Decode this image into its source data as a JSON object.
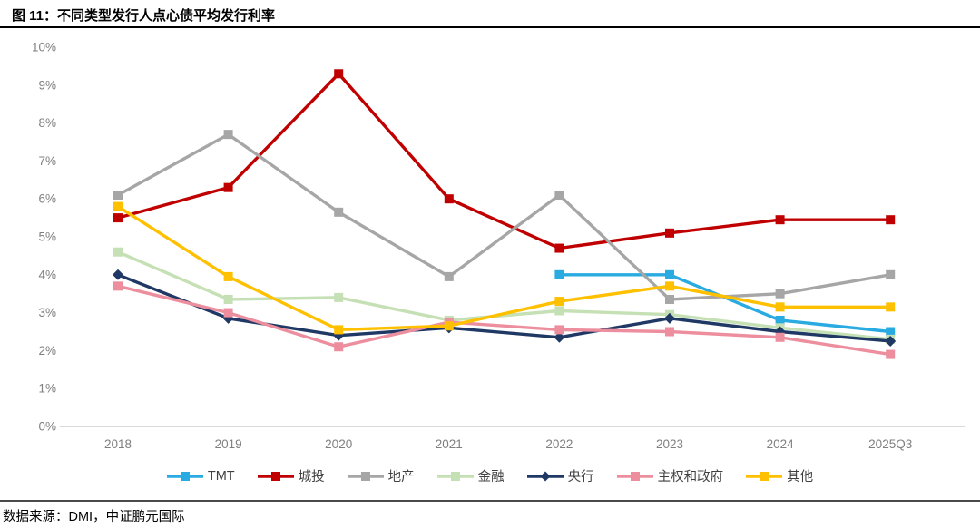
{
  "header": {
    "title": "图 11：不同类型发行人点心债平均发行利率"
  },
  "footer": {
    "source": "数据来源：DMI，中证鹏元国际"
  },
  "chart_data": {
    "type": "line",
    "title": "不同类型发行人点心债平均发行利率",
    "x": [
      "2018",
      "2019",
      "2020",
      "2021",
      "2022",
      "2023",
      "2024",
      "2025Q3"
    ],
    "xlabel": "",
    "ylabel": "",
    "ylim": [
      0,
      10
    ],
    "ytick_step": 1,
    "ytick_suffix": "%",
    "grid": false,
    "legend_position": "bottom",
    "axis_color": "#d9d9d9",
    "tick_label_color": "#7f7f7f",
    "series": [
      {
        "name": "TMT",
        "color": "#29abe2",
        "marker": "square",
        "values": [
          null,
          null,
          null,
          null,
          4.0,
          4.0,
          2.8,
          2.5
        ]
      },
      {
        "name": "城投",
        "color": "#c00000",
        "marker": "square",
        "values": [
          5.5,
          6.3,
          9.3,
          6.0,
          4.7,
          5.1,
          5.45,
          5.45
        ]
      },
      {
        "name": "地产",
        "color": "#a6a6a6",
        "marker": "square",
        "values": [
          6.1,
          7.7,
          5.65,
          3.95,
          6.1,
          3.35,
          3.5,
          4.0
        ]
      },
      {
        "name": "金融",
        "color": "#c5e0b4",
        "marker": "square",
        "values": [
          4.6,
          3.35,
          3.4,
          2.8,
          3.05,
          2.95,
          2.6,
          2.3
        ]
      },
      {
        "name": "央行",
        "color": "#1f3864",
        "marker": "diamond",
        "values": [
          4.0,
          2.85,
          2.4,
          2.6,
          2.35,
          2.85,
          2.5,
          2.25
        ]
      },
      {
        "name": "主权和政府",
        "color": "#ed8e9e",
        "marker": "square",
        "values": [
          3.7,
          3.0,
          2.1,
          2.75,
          2.55,
          2.5,
          2.35,
          1.9
        ]
      },
      {
        "name": "其他",
        "color": "#ffc000",
        "marker": "square",
        "values": [
          5.8,
          3.95,
          2.55,
          2.65,
          3.3,
          3.7,
          3.15,
          3.15
        ]
      }
    ]
  }
}
